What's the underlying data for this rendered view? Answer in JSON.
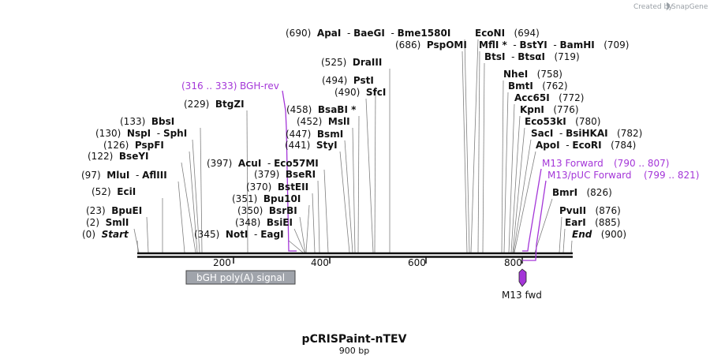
{
  "credit": {
    "text": "Created by",
    "brand": "SnapGene"
  },
  "title": "pCRISPaint-nTEV",
  "subtitle": "900 bp",
  "colors": {
    "primer": "#a436d8",
    "feature_box": "#a0a4ab",
    "leader": "#7f7f7f",
    "backbone": "#111111"
  },
  "sequence": {
    "length": 900,
    "ticks": [
      "200",
      "400",
      "600",
      "800"
    ]
  },
  "sites": [
    {
      "pos": "(0)",
      "name": "Start",
      "italic": true
    },
    {
      "pos": "(2)",
      "name": "SmlI"
    },
    {
      "pos": "(23)",
      "name": "BpuEI"
    },
    {
      "pos": "(52)",
      "name": "EciI"
    },
    {
      "pos": "(97)",
      "name": "MluI",
      "name2": "AflIII"
    },
    {
      "pos": "(122)",
      "name": "BseYI"
    },
    {
      "pos": "(126)",
      "name": "PspFI"
    },
    {
      "pos": "(130)",
      "name": "NspI",
      "name2": "SphI"
    },
    {
      "pos": "(133)",
      "name": "BbsI"
    },
    {
      "pos": "(229)",
      "name": "BtgZI"
    },
    {
      "pos": "(345)",
      "name": "NotI",
      "name2": "EagI"
    },
    {
      "pos": "(348)",
      "name": "BsiEI"
    },
    {
      "pos": "(350)",
      "name": "BsrBI"
    },
    {
      "pos": "(351)",
      "name": "Bpu10I"
    },
    {
      "pos": "(370)",
      "name": "BstEII"
    },
    {
      "pos": "(379)",
      "name": "BseRI"
    },
    {
      "pos": "(397)",
      "name": "AcuI",
      "name2": "Eco57MI"
    },
    {
      "pos": "(441)",
      "name": "StyI"
    },
    {
      "pos": "(447)",
      "name": "BsmI"
    },
    {
      "pos": "(452)",
      "name": "MslI"
    },
    {
      "pos": "(458)",
      "name": "BsaBI *"
    },
    {
      "pos": "(490)",
      "name": "SfcI"
    },
    {
      "pos": "(494)",
      "name": "PstI"
    },
    {
      "pos": "(525)",
      "name": "DraIII"
    },
    {
      "pos": "(686)",
      "name": "PspOMI"
    },
    {
      "pos": "(690)",
      "name": "ApaI",
      "name2": "BaeGI",
      "name3": "Bme1580I"
    },
    {
      "pos": "(694)",
      "name": "EcoNI"
    },
    {
      "pos": "(709)",
      "name": "MflI *",
      "name2": "BstYI",
      "name3": "BamHI"
    },
    {
      "pos": "(719)",
      "name": "BtsI",
      "name2": "BtsαI"
    },
    {
      "pos": "(758)",
      "name": "NheI"
    },
    {
      "pos": "(762)",
      "name": "BmtI"
    },
    {
      "pos": "(772)",
      "name": "Acc65I"
    },
    {
      "pos": "(776)",
      "name": "KpnI"
    },
    {
      "pos": "(780)",
      "name": "Eco53kI"
    },
    {
      "pos": "(782)",
      "name": "SacI",
      "name2": "BsiHKAI"
    },
    {
      "pos": "(784)",
      "name": "ApoI",
      "name2": "EcoRI"
    },
    {
      "pos": "(826)",
      "name": "BmrI"
    },
    {
      "pos": "(876)",
      "name": "PvuII"
    },
    {
      "pos": "(885)",
      "name": "EarI"
    },
    {
      "pos": "(900)",
      "name": "End",
      "italic": true
    }
  ],
  "primers": [
    {
      "name": "BGH-rev",
      "range": "(316 .. 333)"
    },
    {
      "name": "M13 Forward",
      "range": "(790 .. 807)"
    },
    {
      "name": "M13/pUC Forward",
      "range": "(799 .. 821)"
    }
  ],
  "features": [
    {
      "name": "bGH poly(A) signal"
    },
    {
      "name": "M13 fwd"
    }
  ]
}
